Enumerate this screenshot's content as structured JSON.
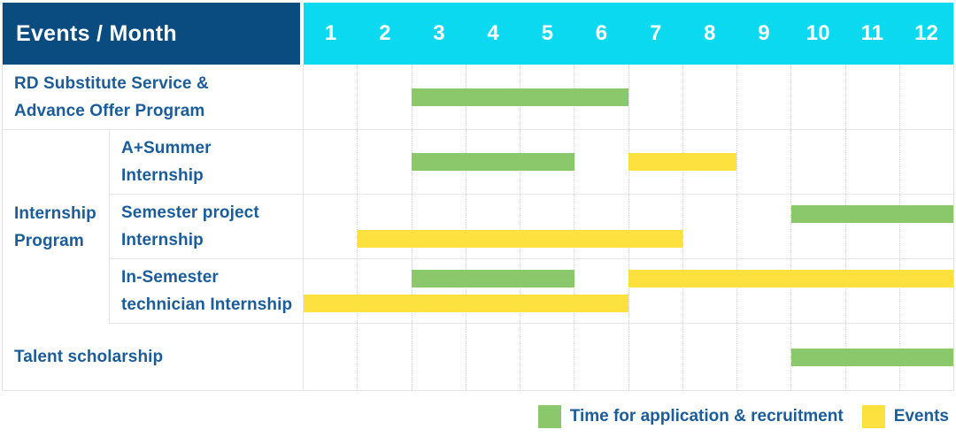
{
  "theme": {
    "header_bg": "#0a4b80",
    "months_bg": "#0bd9ef",
    "label_text": "#1b5c99",
    "grid_line": "#e6e6e6"
  },
  "chart_data": {
    "type": "gantt",
    "title": "Events / Month",
    "x_axis_label": "Month",
    "months": [
      "1",
      "2",
      "3",
      "4",
      "5",
      "6",
      "7",
      "8",
      "9",
      "10",
      "11",
      "12"
    ],
    "legend_position": "bottom-right",
    "legend": [
      {
        "key": "application",
        "label": "Time for application & recruitment",
        "color": "#8bc76b"
      },
      {
        "key": "events",
        "label": "Events",
        "color": "#fde23f"
      }
    ],
    "rows": [
      {
        "id": "rd-substitute",
        "label_lines": [
          "RD Substitute Service &",
          "Advance Offer Program"
        ],
        "tracks": [
          [
            {
              "type": "application",
              "start": 3,
              "end": 6
            }
          ]
        ]
      },
      {
        "id": "internship-program",
        "group_label_lines": [
          "Internship",
          "Program"
        ],
        "children": [
          {
            "id": "a-plus-summer-internship",
            "label_lines": [
              "A+Summer",
              "Internship"
            ],
            "tracks": [
              [
                {
                  "type": "application",
                  "start": 3,
                  "end": 5
                },
                {
                  "type": "events",
                  "start": 7,
                  "end": 8
                }
              ]
            ]
          },
          {
            "id": "semester-project-internship",
            "label_lines": [
              "Semester project",
              "Internship"
            ],
            "tracks": [
              [
                {
                  "type": "application",
                  "start": 10,
                  "end": 12
                }
              ],
              [
                {
                  "type": "events",
                  "start": 2,
                  "end": 7
                }
              ]
            ]
          },
          {
            "id": "in-semester-technician-internship",
            "label_lines": [
              "In-Semester",
              "technician Internship"
            ],
            "tracks": [
              [
                {
                  "type": "application",
                  "start": 3,
                  "end": 5
                },
                {
                  "type": "events",
                  "start": 7,
                  "end": 12
                }
              ],
              [
                {
                  "type": "events",
                  "start": 1,
                  "end": 6
                }
              ]
            ]
          }
        ]
      },
      {
        "id": "talent-scholarship",
        "label_lines": [
          "Talent scholarship"
        ],
        "tracks": [
          [
            {
              "type": "application",
              "start": 10,
              "end": 12
            }
          ]
        ]
      }
    ]
  }
}
